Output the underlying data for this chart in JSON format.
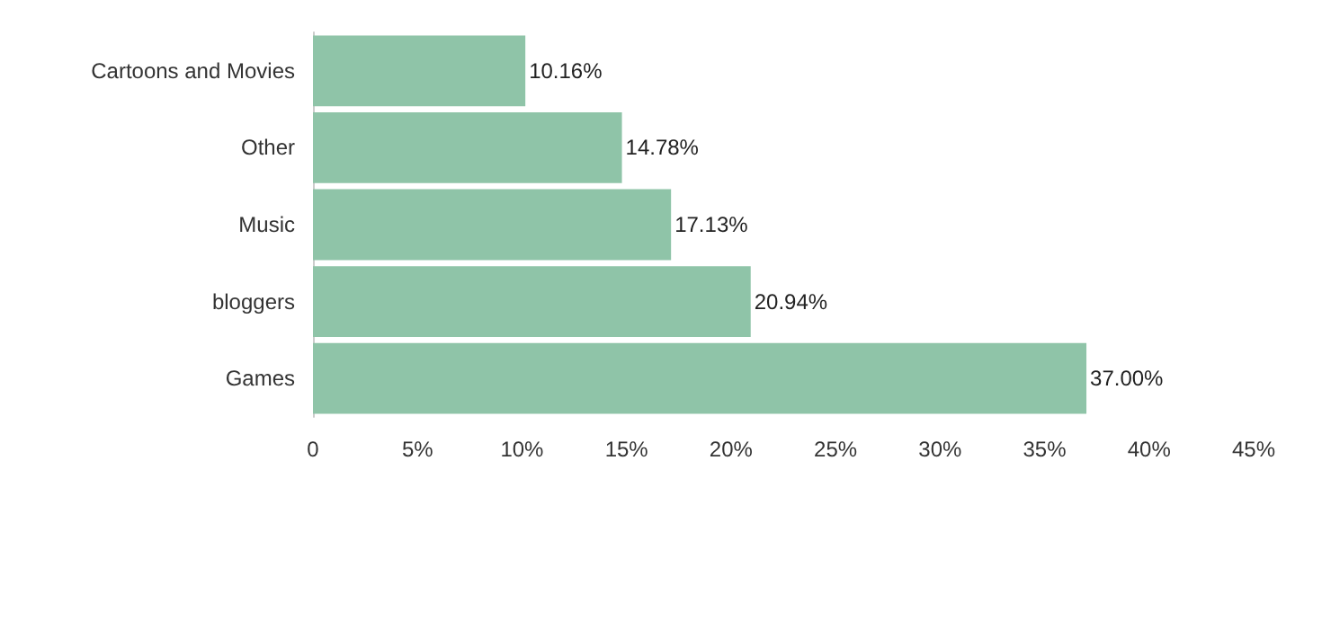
{
  "chart_data": {
    "type": "bar",
    "orientation": "horizontal",
    "categories": [
      "Cartoons and Movies",
      "Other",
      "Music",
      "bloggers",
      "Games"
    ],
    "values": [
      10.16,
      14.78,
      17.13,
      20.94,
      37.0
    ],
    "value_labels": [
      "10.16%",
      "14.78%",
      "17.13%",
      "20.94%",
      "37.00%"
    ],
    "color": "#8fc4a8",
    "xlim": [
      0,
      45
    ],
    "xticks": [
      0,
      {
        "value": 5,
        "label": "5%"
      },
      {
        "value": 10,
        "label": "10%"
      },
      {
        "value": 15,
        "label": "15%"
      },
      {
        "value": 20,
        "label": "20%"
      },
      {
        "value": 25,
        "label": "25%"
      },
      {
        "value": 30,
        "label": "30%"
      },
      {
        "value": 35,
        "label": "35%"
      },
      {
        "value": 40,
        "label": "40%"
      },
      {
        "value": 45,
        "label": "45%"
      }
    ],
    "grid": false
  }
}
